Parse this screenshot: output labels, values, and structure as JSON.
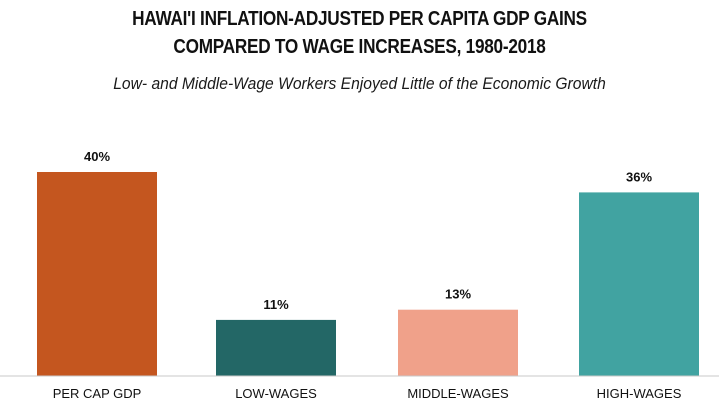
{
  "chart_data": {
    "type": "bar",
    "title_lines": [
      "HAWAI'I INFLATION-ADJUSTED PER CAPITA GDP GAINS",
      "COMPARED TO WAGE INCREASES, 1980-2018"
    ],
    "subtitle": "Low- and Middle-Wage Workers Enjoyed Little of the Economic Growth",
    "categories": [
      "PER CAP GDP",
      "LOW-WAGES",
      "MIDDLE-WAGES",
      "HIGH-WAGES"
    ],
    "values": [
      40,
      11,
      13,
      36
    ],
    "value_labels": [
      "40%",
      "11%",
      "13%",
      "36%"
    ],
    "colors": [
      "#c4561f",
      "#236766",
      "#f0a18a",
      "#41a3a1"
    ],
    "xlabel": "",
    "ylabel": "",
    "ylim": [
      0,
      40
    ],
    "grid": false,
    "legend": "none"
  }
}
